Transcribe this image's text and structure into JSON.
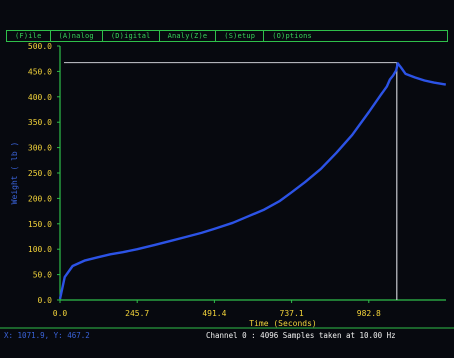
{
  "menu": {
    "items": [
      "(F)ile",
      "(A)nalog",
      "(D)igital",
      "Analy(Z)e",
      "(S)etup",
      "(O)ptions"
    ]
  },
  "status": {
    "coords": "X: 1071.9, Y: 467.2",
    "channel_info": "Channel 0 : 4096 Samples taken at  10.00 Hz"
  },
  "colors": {
    "axis": "#2fbf4a",
    "trace": "#2c53e6",
    "tick_text": "#f2d33a",
    "cursor": "#c9cbd0"
  },
  "chart_data": {
    "type": "line",
    "title": "",
    "xlabel": "Time (Seconds)",
    "ylabel": "Weight ( lb )",
    "xlim": [
      0,
      1228.5
    ],
    "ylim": [
      0,
      500
    ],
    "x_ticks": [
      "0.0",
      "245.7",
      "491.4",
      "737.1",
      "982.8"
    ],
    "y_ticks": [
      "0.0",
      "50.0",
      "100.0",
      "150.0",
      "200.0",
      "250.0",
      "300.0",
      "350.0",
      "400.0",
      "450.0",
      "500.0"
    ],
    "cursor": {
      "x": 1071.9,
      "y": 467.2
    },
    "series": [
      {
        "x": [
          0,
          15,
          40,
          80,
          120,
          160,
          200,
          246,
          300,
          350,
          400,
          450,
          491,
          550,
          600,
          650,
          700,
          737,
          780,
          830,
          880,
          930,
          983,
          1020,
          1040,
          1050,
          1060,
          1070,
          1075,
          1085,
          1100,
          1130,
          1160,
          1190,
          1228
        ],
        "y": [
          2,
          45,
          67,
          78,
          84,
          90,
          94,
          100,
          108,
          116,
          124,
          132,
          140,
          152,
          165,
          178,
          195,
          212,
          232,
          258,
          290,
          325,
          370,
          403,
          420,
          434,
          442,
          452,
          466,
          458,
          445,
          438,
          432,
          428,
          424
        ]
      }
    ]
  }
}
